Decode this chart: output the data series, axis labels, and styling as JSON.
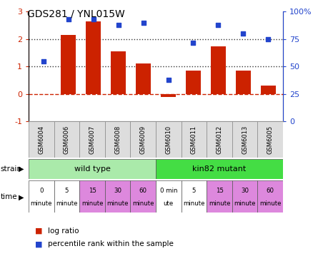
{
  "title": "GDS281 / YNL015W",
  "samples": [
    "GSM6004",
    "GSM6006",
    "GSM6007",
    "GSM6008",
    "GSM6009",
    "GSM6010",
    "GSM6011",
    "GSM6012",
    "GSM6013",
    "GSM6005"
  ],
  "log_ratio": [
    0.0,
    2.15,
    2.65,
    1.55,
    1.1,
    -0.12,
    0.85,
    1.75,
    0.85,
    0.3
  ],
  "percentile": [
    55,
    93,
    93,
    88,
    90,
    38,
    72,
    88,
    80,
    75
  ],
  "ylim_left": [
    -1,
    3
  ],
  "ylim_right": [
    0,
    100
  ],
  "bar_color": "#cc2200",
  "scatter_color": "#2244cc",
  "dashed_zero_color": "#cc2200",
  "dotted_line_color": "#333333",
  "strain_wild_color": "#aaeaaa",
  "strain_mutant_color": "#44dd44",
  "time_white_color": "#ffffff",
  "time_pink_color": "#dd88dd",
  "strain_label_arrow": "▶",
  "wild_type_label": "wild type",
  "mutant_label": "kin82 mutant",
  "time_labels_top": [
    "0",
    "5",
    "15",
    "30",
    "60",
    "0 min",
    "5",
    "15",
    "30",
    "60"
  ],
  "time_labels_bot": [
    "minute",
    "minute",
    "minute",
    "minute",
    "minute",
    "ute",
    "minute",
    "minute",
    "minute",
    "minute"
  ],
  "time_colors": [
    "#ffffff",
    "#ffffff",
    "#dd88dd",
    "#dd88dd",
    "#dd88dd",
    "#ffffff",
    "#ffffff",
    "#dd88dd",
    "#dd88dd",
    "#dd88dd"
  ],
  "legend_log_ratio": "log ratio",
  "legend_percentile": "percentile rank within the sample",
  "right_yticks": [
    0,
    25,
    50,
    75,
    100
  ],
  "right_yticklabels": [
    "0",
    "25",
    "50",
    "75",
    "100%"
  ],
  "left_yticks": [
    -1,
    0,
    1,
    2,
    3
  ],
  "left_yticklabels": [
    "-1",
    "0",
    "1",
    "2",
    "3"
  ],
  "left_axis_color": "#cc2200",
  "right_axis_color": "#2244cc",
  "sample_box_color": "#dddddd",
  "sample_box_edge": "#888888"
}
